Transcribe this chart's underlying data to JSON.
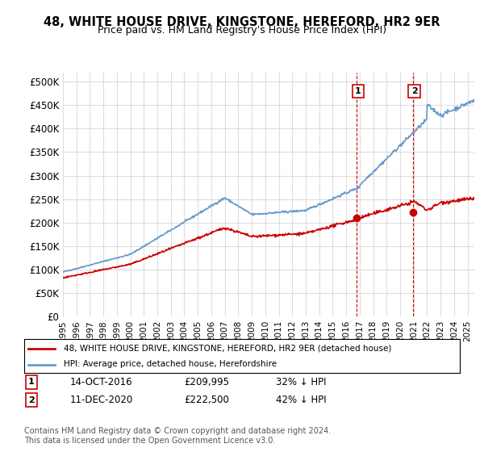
{
  "title": "48, WHITE HOUSE DRIVE, KINGSTONE, HEREFORD, HR2 9ER",
  "subtitle": "Price paid vs. HM Land Registry's House Price Index (HPI)",
  "title_fontsize": 11,
  "subtitle_fontsize": 9.5,
  "ylabel_ticks": [
    "£0",
    "£50K",
    "£100K",
    "£150K",
    "£200K",
    "£250K",
    "£300K",
    "£350K",
    "£400K",
    "£450K",
    "£500K"
  ],
  "ytick_values": [
    0,
    50000,
    100000,
    150000,
    200000,
    250000,
    300000,
    350000,
    400000,
    450000,
    500000
  ],
  "ylim": [
    0,
    520000
  ],
  "xlim_start": 1995.0,
  "xlim_end": 2025.5,
  "hpi_color": "#6699cc",
  "price_color": "#cc0000",
  "marker1_date": 2016.79,
  "marker1_price": 209995,
  "marker2_date": 2020.95,
  "marker2_price": 222500,
  "legend_label1": "48, WHITE HOUSE DRIVE, KINGSTONE, HEREFORD, HR2 9ER (detached house)",
  "legend_label2": "HPI: Average price, detached house, Herefordshire",
  "note1_num": "1",
  "note1_date": "14-OCT-2016",
  "note1_price": "£209,995",
  "note1_hpi": "32% ↓ HPI",
  "note2_num": "2",
  "note2_date": "11-DEC-2020",
  "note2_price": "£222,500",
  "note2_hpi": "42% ↓ HPI",
  "footer": "Contains HM Land Registry data © Crown copyright and database right 2024.\nThis data is licensed under the Open Government Licence v3.0.",
  "background_color": "#ffffff",
  "grid_color": "#dddddd"
}
